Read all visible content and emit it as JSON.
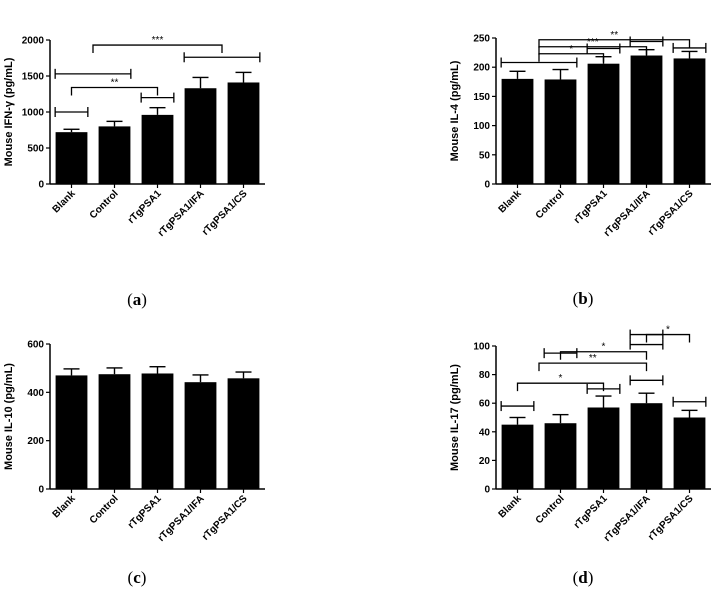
{
  "figure": {
    "categories": [
      "Blank",
      "Control",
      "rTgPSA1",
      "rTgPSA1/IFA",
      "rTgPSA1/CS"
    ]
  },
  "chart_data": [
    {
      "type": "bar",
      "caption": "a",
      "ylabel": "Mouse IFN-γ (pg/mL)",
      "ylim": [
        0,
        2000
      ],
      "yticks": [
        0,
        500,
        1000,
        1500,
        2000
      ],
      "categories": [
        "Blank",
        "Control",
        "rTgPSA1",
        "rTgPSA1/IFA",
        "rTgPSA1/CS"
      ],
      "values": [
        720,
        800,
        960,
        1330,
        1410
      ],
      "errors": [
        40,
        70,
        100,
        150,
        140
      ],
      "significance": [
        {
          "label": "***",
          "from": [
            0,
            1
          ],
          "to": [
            3,
            4
          ],
          "y": 1930
        },
        {
          "label": "**",
          "from": [
            0
          ],
          "to": [
            2
          ],
          "y": 1340
        }
      ],
      "group_brackets": [
        {
          "from": 0,
          "to": 1,
          "y": 1530
        },
        {
          "from": 3,
          "to": 4,
          "y": 1760
        },
        {
          "from": 0,
          "to": 0,
          "y": 1000
        },
        {
          "from": 2,
          "to": 2,
          "y": 1200
        }
      ]
    },
    {
      "type": "bar",
      "caption": "b",
      "ylabel": "Mouse IL-4 (pg/mL)",
      "ylim": [
        0,
        250
      ],
      "yticks": [
        0,
        50,
        100,
        150,
        200,
        250
      ],
      "categories": [
        "Blank",
        "Control",
        "rTgPSA1",
        "rTgPSA1/IFA",
        "rTgPSA1/CS"
      ],
      "values": [
        180,
        179,
        206,
        220,
        215
      ],
      "errors": [
        13,
        17,
        12,
        10,
        12
      ],
      "significance": [
        {
          "label": "**",
          "from": [
            0,
            1
          ],
          "to": [
            4
          ],
          "y": 247
        },
        {
          "label": "***",
          "from": [
            0,
            1
          ],
          "to": [
            3
          ],
          "y": 235
        },
        {
          "label": "*",
          "from": [
            0,
            1
          ],
          "to": [
            2
          ],
          "y": 223
        }
      ],
      "group_brackets": [
        {
          "from": 0,
          "to": 1,
          "y": 208
        },
        {
          "from": 2,
          "to": 2,
          "y": 232
        },
        {
          "from": 3,
          "to": 3,
          "y": 244
        },
        {
          "from": 4,
          "to": 4,
          "y": 233
        }
      ]
    },
    {
      "type": "bar",
      "caption": "c",
      "ylabel": "Mouse IL-10 (pg/mL)",
      "ylim": [
        0,
        600
      ],
      "yticks": [
        0,
        200,
        400,
        600
      ],
      "categories": [
        "Blank",
        "Control",
        "rTgPSA1",
        "rTgPSA1/IFA",
        "rTgPSA1/CS"
      ],
      "values": [
        470,
        475,
        478,
        442,
        458
      ],
      "errors": [
        27,
        26,
        28,
        30,
        26
      ],
      "significance": [],
      "group_brackets": []
    },
    {
      "type": "bar",
      "caption": "d",
      "ylabel": "Mouse IL-17 (pg/mL)",
      "ylim": [
        0,
        100
      ],
      "yticks": [
        0,
        20,
        40,
        60,
        80,
        100
      ],
      "categories": [
        "Blank",
        "Control",
        "rTgPSA1",
        "rTgPSA1/IFA",
        "rTgPSA1/CS"
      ],
      "values": [
        45,
        46,
        57,
        60,
        50
      ],
      "errors": [
        5,
        6,
        8,
        7,
        5
      ],
      "significance": [
        {
          "label": "*",
          "from": [
            3
          ],
          "to": [
            4
          ],
          "y": 108
        },
        {
          "label": "*",
          "from": [
            1
          ],
          "to": [
            3
          ],
          "y": 96
        },
        {
          "label": "**",
          "from": [
            0,
            1
          ],
          "to": [
            3
          ],
          "y": 88
        },
        {
          "label": "*",
          "from": [
            0
          ],
          "to": [
            2
          ],
          "y": 74
        }
      ],
      "group_brackets": [
        {
          "from": 0,
          "to": 0,
          "y": 58
        },
        {
          "from": 2,
          "to": 2,
          "y": 70
        },
        {
          "from": 3,
          "to": 3,
          "y": 76
        },
        {
          "from": 4,
          "to": 4,
          "y": 61
        },
        {
          "from": 3,
          "to": 3,
          "y": 108
        },
        {
          "from": 1,
          "to": 1,
          "y": 95
        },
        {
          "from": 3,
          "to": 3,
          "y": 101
        }
      ]
    }
  ]
}
